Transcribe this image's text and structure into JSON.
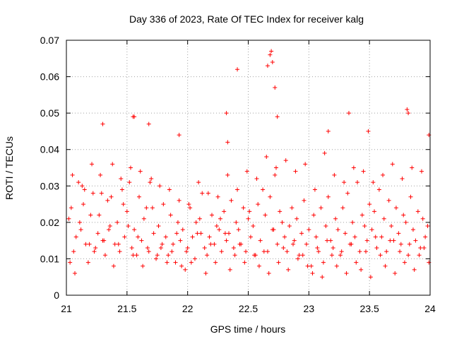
{
  "chart_data": {
    "type": "scatter",
    "title": "Day 336 of 2023, Rate Of TEC Index for receiver kalg",
    "xlabel": "GPS time / hours",
    "ylabel": "ROTI / TECUs",
    "xlim": [
      21,
      24
    ],
    "ylim": [
      0,
      0.07
    ],
    "x_ticks": [
      21,
      21.5,
      22,
      22.5,
      23,
      23.5,
      24
    ],
    "x_tick_labels": [
      "21",
      "21.5",
      "22",
      "22.5",
      "23",
      "23.5",
      "24"
    ],
    "y_ticks": [
      0,
      0.01,
      0.02,
      0.03,
      0.04,
      0.05,
      0.06,
      0.07
    ],
    "y_tick_labels": [
      "0",
      "0.01",
      "0.02",
      "0.03",
      "0.04",
      "0.05",
      "0.06",
      "0.07"
    ],
    "grid": true,
    "marker": "plus",
    "color": "#ff0000",
    "series": [
      {
        "name": "ROTI",
        "x": [
          21.02,
          21.04,
          21.06,
          21.08,
          21.1,
          21.12,
          21.14,
          21.16,
          21.18,
          21.2,
          21.22,
          21.24,
          21.26,
          21.28,
          21.3,
          21.32,
          21.34,
          21.36,
          21.38,
          21.4,
          21.42,
          21.44,
          21.46,
          21.48,
          21.5,
          21.52,
          21.54,
          21.56,
          21.58,
          21.6,
          21.62,
          21.64,
          21.66,
          21.68,
          21.7,
          21.72,
          21.74,
          21.76,
          21.78,
          21.8,
          21.82,
          21.84,
          21.86,
          21.88,
          21.9,
          21.92,
          21.94,
          21.96,
          21.98,
          22.0,
          22.02,
          22.04,
          22.06,
          22.08,
          22.1,
          22.12,
          22.14,
          22.16,
          22.18,
          22.2,
          22.22,
          22.24,
          22.26,
          22.28,
          22.3,
          22.32,
          22.34,
          22.36,
          22.38,
          22.4,
          22.42,
          22.44,
          22.46,
          22.48,
          22.5,
          22.52,
          22.54,
          22.56,
          22.58,
          22.6,
          22.62,
          22.64,
          22.66,
          22.68,
          22.7,
          22.72,
          22.74,
          22.76,
          22.78,
          22.8,
          22.82,
          22.84,
          22.86,
          22.88,
          22.9,
          22.92,
          22.94,
          22.96,
          22.98,
          23.0,
          23.02,
          23.04,
          23.06,
          23.08,
          23.1,
          23.12,
          23.14,
          23.16,
          23.18,
          23.2,
          23.22,
          23.24,
          23.26,
          23.28,
          23.3,
          23.32,
          23.34,
          23.36,
          23.38,
          23.4,
          23.42,
          23.44,
          23.46,
          23.48,
          23.5,
          23.52,
          23.54,
          23.56,
          23.58,
          23.6,
          23.62,
          23.64,
          23.66,
          23.68,
          23.7,
          23.72,
          23.74,
          23.76,
          23.78,
          23.8,
          23.82,
          23.84,
          23.86,
          23.88,
          23.9,
          23.92,
          23.94,
          23.96,
          23.98,
          21.03,
          21.07,
          21.11,
          21.15,
          21.19,
          21.23,
          21.27,
          21.31,
          21.35,
          21.39,
          21.43,
          21.47,
          21.51,
          21.55,
          21.59,
          21.63,
          21.67,
          21.71,
          21.75,
          21.79,
          21.83,
          21.87,
          21.91,
          21.95,
          21.99,
          22.03,
          22.07,
          22.11,
          22.15,
          22.19,
          22.23,
          22.27,
          22.31,
          22.35,
          22.39,
          22.43,
          22.47,
          22.51,
          22.55,
          22.59,
          22.63,
          22.67,
          22.71,
          22.75,
          22.79,
          22.83,
          22.87,
          22.91,
          22.95,
          22.99,
          23.03,
          23.07,
          23.11,
          23.15,
          23.19,
          23.23,
          23.27,
          23.31,
          23.35,
          23.39,
          23.43,
          23.47,
          23.51,
          23.55,
          23.59,
          23.63,
          23.67,
          23.71,
          23.75,
          23.79,
          23.83,
          23.87,
          23.91,
          23.95,
          23.99,
          21.05,
          21.13,
          21.21,
          21.29,
          21.37,
          21.45,
          21.53,
          21.61,
          21.69,
          21.77,
          21.85,
          21.93,
          22.01,
          22.09,
          22.17,
          22.25,
          22.33,
          22.41,
          22.49,
          22.57,
          22.65,
          22.73,
          22.81,
          22.89,
          22.97,
          23.05,
          23.13,
          23.21,
          23.29,
          23.37,
          23.45,
          23.53,
          23.61,
          23.69,
          23.77,
          23.85,
          23.93,
          21.3,
          21.55,
          21.56,
          21.68,
          21.93,
          22.32,
          22.33,
          22.41,
          22.66,
          22.68,
          22.69,
          22.7,
          22.72,
          22.74,
          23.16,
          23.33,
          23.49,
          23.81,
          23.82,
          23.99
        ],
        "y": [
          0.021,
          0.024,
          0.012,
          0.016,
          0.031,
          0.018,
          0.025,
          0.014,
          0.009,
          0.022,
          0.028,
          0.013,
          0.017,
          0.033,
          0.015,
          0.011,
          0.026,
          0.019,
          0.036,
          0.014,
          0.02,
          0.012,
          0.029,
          0.016,
          0.023,
          0.031,
          0.013,
          0.018,
          0.011,
          0.027,
          0.015,
          0.021,
          0.024,
          0.012,
          0.032,
          0.017,
          0.01,
          0.019,
          0.013,
          0.025,
          0.016,
          0.011,
          0.022,
          0.014,
          0.009,
          0.02,
          0.015,
          0.018,
          0.007,
          0.013,
          0.024,
          0.016,
          0.01,
          0.017,
          0.021,
          0.028,
          0.013,
          0.011,
          0.016,
          0.022,
          0.014,
          0.019,
          0.018,
          0.012,
          0.023,
          0.015,
          0.017,
          0.026,
          0.013,
          0.02,
          0.018,
          0.014,
          0.024,
          0.012,
          0.021,
          0.016,
          0.019,
          0.011,
          0.025,
          0.015,
          0.029,
          0.022,
          0.012,
          0.027,
          0.018,
          0.033,
          0.014,
          0.023,
          0.02,
          0.016,
          0.012,
          0.019,
          0.024,
          0.015,
          0.021,
          0.011,
          0.017,
          0.026,
          0.014,
          0.018,
          0.008,
          0.022,
          0.016,
          0.012,
          0.024,
          0.009,
          0.019,
          0.027,
          0.015,
          0.013,
          0.021,
          0.018,
          0.011,
          0.024,
          0.017,
          0.028,
          0.014,
          0.02,
          0.016,
          0.031,
          0.012,
          0.022,
          0.019,
          0.015,
          0.025,
          0.018,
          0.023,
          0.013,
          0.029,
          0.016,
          0.021,
          0.012,
          0.026,
          0.019,
          0.015,
          0.024,
          0.017,
          0.014,
          0.022,
          0.02,
          0.011,
          0.027,
          0.018,
          0.015,
          0.023,
          0.013,
          0.021,
          0.016,
          0.019,
          0.009,
          0.006,
          0.02,
          0.029,
          0.014,
          0.012,
          0.022,
          0.015,
          0.018,
          0.008,
          0.014,
          0.025,
          0.019,
          0.011,
          0.016,
          0.008,
          0.013,
          0.024,
          0.011,
          0.014,
          0.009,
          0.012,
          0.017,
          0.008,
          0.012,
          0.009,
          0.02,
          0.017,
          0.006,
          0.014,
          0.009,
          0.021,
          0.017,
          0.007,
          0.011,
          0.014,
          0.009,
          0.023,
          0.011,
          0.008,
          0.012,
          0.006,
          0.018,
          0.009,
          0.013,
          0.007,
          0.014,
          0.01,
          0.011,
          0.008,
          0.006,
          0.013,
          0.005,
          0.015,
          0.011,
          0.008,
          0.012,
          0.006,
          0.014,
          0.009,
          0.007,
          0.012,
          0.005,
          0.016,
          0.011,
          0.008,
          0.015,
          0.006,
          0.012,
          0.009,
          0.014,
          0.007,
          0.011,
          0.013,
          0.009,
          0.033,
          0.03,
          0.036,
          0.028,
          0.027,
          0.032,
          0.035,
          0.034,
          0.031,
          0.03,
          0.029,
          0.026,
          0.025,
          0.031,
          0.028,
          0.027,
          0.033,
          0.029,
          0.034,
          0.032,
          0.038,
          0.035,
          0.037,
          0.034,
          0.036,
          0.029,
          0.039,
          0.033,
          0.031,
          0.035,
          0.034,
          0.031,
          0.033,
          0.036,
          0.032,
          0.035,
          0.034,
          0.047,
          0.049,
          0.049,
          0.047,
          0.044,
          0.05,
          0.042,
          0.062,
          0.063,
          0.066,
          0.067,
          0.064,
          0.057,
          0.049,
          0.045,
          0.05,
          0.045,
          0.051,
          0.05,
          0.044
        ]
      }
    ]
  }
}
